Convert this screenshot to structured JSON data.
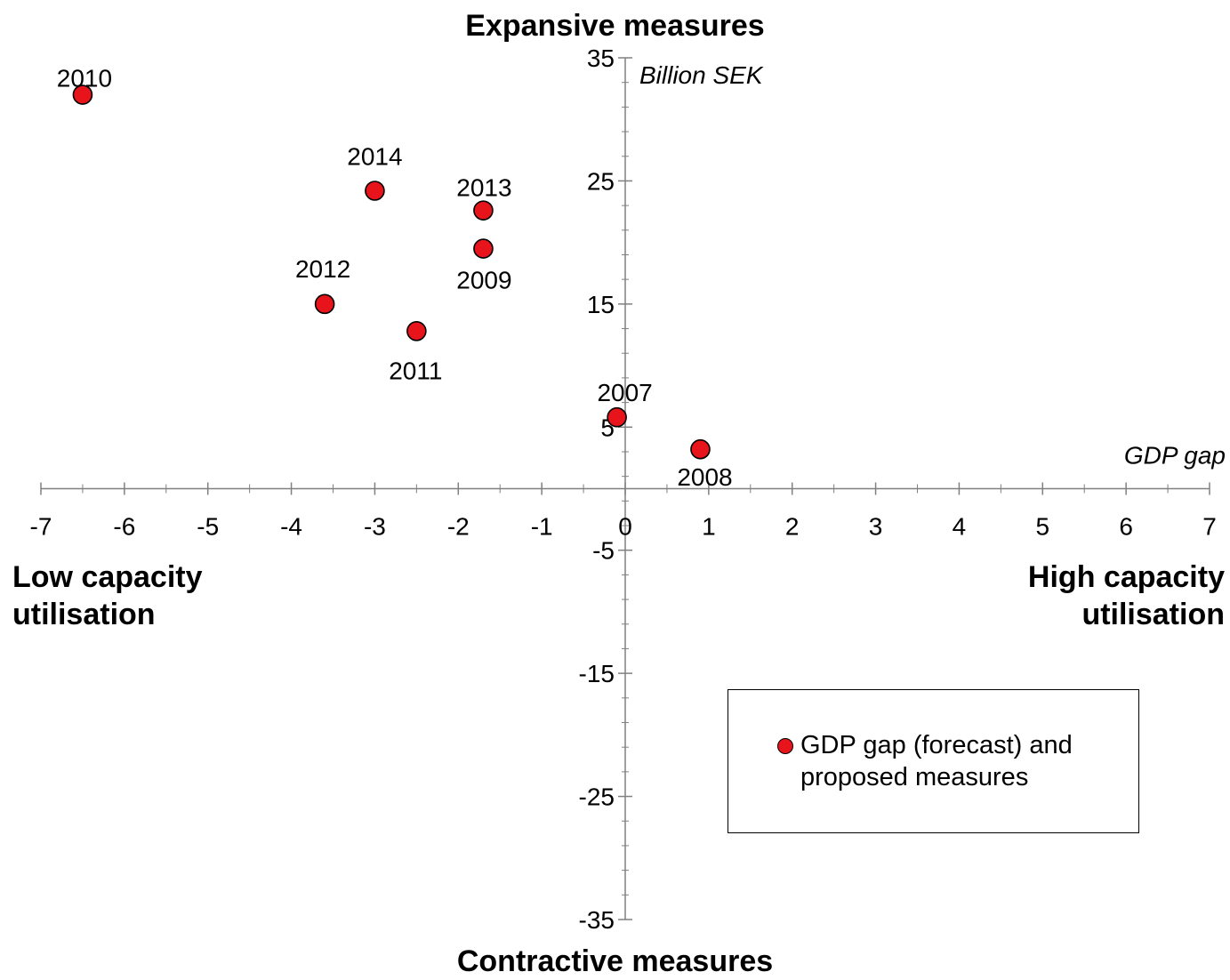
{
  "chart_data": {
    "type": "scatter",
    "title": "",
    "xlabel": "GDP gap",
    "ylabel": "Billion SEK",
    "xlim": [
      -7,
      7
    ],
    "ylim": [
      -35,
      35
    ],
    "x_ticks": [
      -7,
      -6,
      -5,
      -4,
      -3,
      -2,
      -1,
      0,
      1,
      2,
      3,
      4,
      5,
      6,
      7
    ],
    "y_ticks": [
      35,
      25,
      15,
      5,
      -5,
      -15,
      -25,
      -35
    ],
    "grid": false,
    "legend_position": "bottom-right",
    "marker_color": "#e8141c",
    "quadrant_labels": {
      "top": "Expansive measures",
      "bottom": "Contractive measures",
      "left": [
        "Low capacity",
        "utilisation"
      ],
      "right": [
        "High capacity",
        "utilisation"
      ]
    },
    "series": [
      {
        "name": "GDP gap (forecast) and proposed measures",
        "points": [
          {
            "label": "2007",
            "x": -0.1,
            "y": 5.8
          },
          {
            "label": "2008",
            "x": 0.9,
            "y": 3.2
          },
          {
            "label": "2009",
            "x": -1.7,
            "y": 19.5
          },
          {
            "label": "2010",
            "x": -6.5,
            "y": 32.0
          },
          {
            "label": "2011",
            "x": -2.5,
            "y": 12.8
          },
          {
            "label": "2012",
            "x": -3.6,
            "y": 15.0
          },
          {
            "label": "2013",
            "x": -1.7,
            "y": 22.6
          },
          {
            "label": "2014",
            "x": -3.0,
            "y": 24.2
          }
        ]
      }
    ]
  },
  "legend": {
    "line1": "GDP gap (forecast) and",
    "line2": "proposed measures"
  }
}
